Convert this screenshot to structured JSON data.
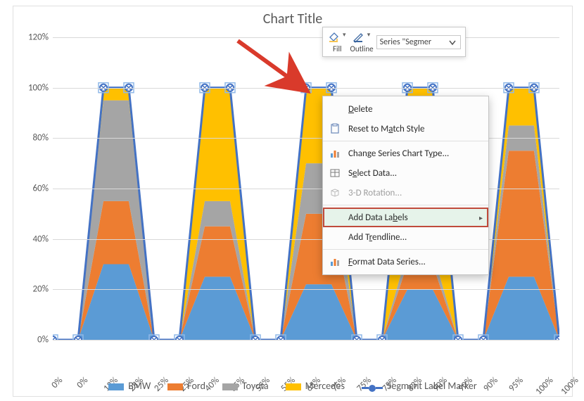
{
  "chart": {
    "title": "Chart Title",
    "type": "stacked_area_with_line",
    "y_axis": {
      "min": 0,
      "max": 1.2,
      "tick_step": 0.2,
      "format": "percent",
      "labels": [
        "0%",
        "20%",
        "40%",
        "60%",
        "80%",
        "100%",
        "120%"
      ],
      "grid_color": "#d9d9d9",
      "text_color": "#595959",
      "fontsize": 13
    },
    "x_axis": {
      "labels": [
        "0%",
        "0%",
        "13%",
        "25%",
        "25%",
        "25%",
        "40%",
        "55%",
        "55%",
        "55%",
        "65%",
        "75%",
        "75%",
        "75%",
        "83%",
        "90%",
        "90%",
        "90%",
        "95%",
        "100%",
        "100%"
      ],
      "text_color": "#595959",
      "fontsize": 13,
      "rotation_deg": -45
    },
    "series": [
      {
        "name": "BMW",
        "color": "#5b9bd5"
      },
      {
        "name": "Ford",
        "color": "#ed7d31"
      },
      {
        "name": "Toyota",
        "color": "#a5a5a5"
      },
      {
        "name": "Mercedes",
        "color": "#ffc000"
      }
    ],
    "line_series": {
      "name": "Segment Label Marker",
      "color": "#4472c4",
      "marker_shape": "x-in-circle",
      "line_width": 3
    },
    "stack_totals": [
      0,
      0,
      1,
      1,
      0,
      0,
      1,
      1,
      0,
      0,
      1,
      1,
      0,
      0,
      1,
      1,
      0,
      0,
      1,
      1,
      0
    ],
    "stacks": {
      "bmw": [
        0,
        0,
        0.3,
        0.3,
        0,
        0,
        0.25,
        0.25,
        0,
        0,
        0.22,
        0.22,
        0,
        0,
        0.2,
        0.2,
        0,
        0,
        0.25,
        0.25,
        0
      ],
      "ford": [
        0,
        0,
        0.25,
        0.25,
        0,
        0,
        0.2,
        0.2,
        0,
        0,
        0.28,
        0.28,
        0,
        0,
        0.1,
        0.1,
        0,
        0,
        0.5,
        0.5,
        0
      ],
      "toyota": [
        0,
        0,
        0.4,
        0.4,
        0,
        0,
        0.1,
        0.1,
        0,
        0,
        0.2,
        0.2,
        0,
        0,
        0.05,
        0.05,
        0,
        0,
        0.1,
        0.1,
        0
      ],
      "mercedes": [
        0,
        0,
        0.05,
        0.05,
        0,
        0,
        0.45,
        0.45,
        0,
        0,
        0.3,
        0.3,
        0,
        0,
        0.65,
        0.65,
        0,
        0,
        0.15,
        0.15,
        0
      ]
    },
    "marker_values": [
      0,
      0,
      1,
      1,
      0,
      0,
      1,
      1,
      0,
      0,
      1,
      1,
      0,
      0,
      1,
      1,
      0,
      0,
      1,
      1,
      0
    ],
    "background_color": "#ffffff"
  },
  "legend": {
    "items": [
      {
        "label": "BMW",
        "color": "#5b9bd5",
        "type": "swatch"
      },
      {
        "label": "Ford",
        "color": "#ed7d31",
        "type": "swatch"
      },
      {
        "label": "Toyota",
        "color": "#a5a5a5",
        "type": "swatch"
      },
      {
        "label": "Mercedes",
        "color": "#ffc000",
        "type": "swatch"
      },
      {
        "label": "Segment Label Marker",
        "color": "#4472c4",
        "type": "line"
      }
    ]
  },
  "minibar": {
    "fill_label": "Fill",
    "outline_label": "Outline",
    "selector_text": "Series \"Segmer"
  },
  "context_menu": {
    "items": {
      "delete": "Delete",
      "reset": "Reset to Match Style",
      "change_type": "Change Series Chart Type...",
      "select_data": "Select Data...",
      "rotation_3d": "3-D Rotation...",
      "add_labels": "Add Data Labels",
      "add_trendline": "Add Trendline...",
      "format_series": "Format Data Series..."
    }
  }
}
